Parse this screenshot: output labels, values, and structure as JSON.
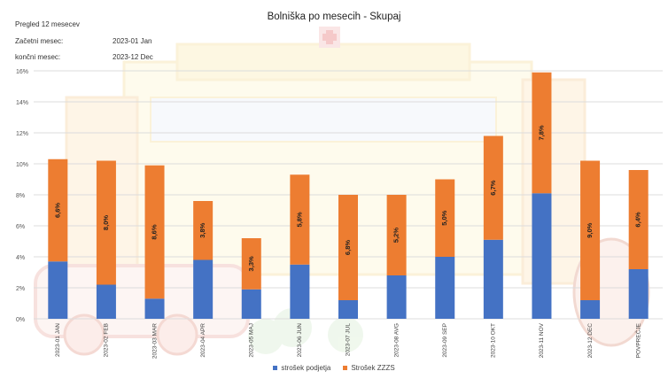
{
  "info": {
    "overview": "Pregled 12 mesecev",
    "start_label": "Začetni mesec:",
    "start_value": "2023-01 Jan",
    "end_label": "končni mesec:",
    "end_value": "2023-12 Dec"
  },
  "chart_data": {
    "type": "bar",
    "stacked": true,
    "title": "Bolniška po mesecih - Skupaj",
    "categories": [
      "2023-01 JAN",
      "2023-02 FEB",
      "2023-03 MAR",
      "2023-04 APR",
      "2023-05 MAJ",
      "2023-06 JUN",
      "2023-07 JUL",
      "2023-08 AVG",
      "2023-09 SEP",
      "2023-10 OKT",
      "2023-11 NOV",
      "2023-12 DEC",
      "POVPREČJE"
    ],
    "series": [
      {
        "name": "strošek podjetja",
        "color": "#4472c4",
        "values": [
          3.7,
          2.2,
          1.3,
          3.8,
          1.9,
          3.5,
          1.2,
          2.8,
          4.0,
          5.1,
          8.1,
          1.2,
          3.2
        ]
      },
      {
        "name": "Strošek ZZZS",
        "color": "#ed7d31",
        "values": [
          6.6,
          8.0,
          8.6,
          3.8,
          3.3,
          5.8,
          6.8,
          5.2,
          5.0,
          6.7,
          7.8,
          9.0,
          6.4
        ]
      }
    ],
    "data_labels": [
      "6,6%",
      "8,0%",
      "8,6%",
      "3,8%",
      "3,3%",
      "5,8%",
      "6,8%",
      "5,2%",
      "5,0%",
      "6,7%",
      "7,8%",
      "9,0%",
      "6,4%"
    ],
    "y_ticks": [
      "0%",
      "2%",
      "4%",
      "6%",
      "8%",
      "10%",
      "12%",
      "14%",
      "16%"
    ],
    "ylim": [
      0,
      16
    ],
    "grid": true,
    "legend": "bottom-center"
  }
}
